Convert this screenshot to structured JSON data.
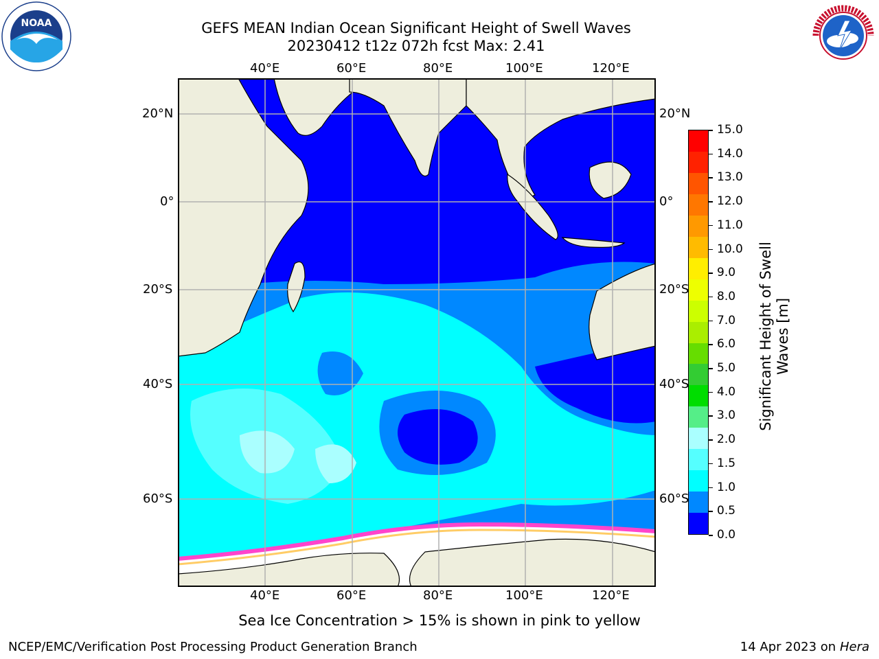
{
  "title_line1": "GEFS MEAN Indian Ocean Significant Height of Swell Waves",
  "title_line2": "20230412 t12z 072h fcst   Max: 2.41",
  "lon_labels": [
    "40°E",
    "60°E",
    "80°E",
    "100°E",
    "120°E"
  ],
  "lat_labels_left": [
    "20°N",
    "0°",
    "20°S",
    "40°S",
    "60°S"
  ],
  "lat_labels_right": [
    "20°N",
    "0°",
    "20°S",
    "40°S",
    "60°S"
  ],
  "colorbar": {
    "label_line1": "Significant Height of Swell",
    "label_line2": "Waves [m]",
    "ticks": [
      "15.0",
      "14.0",
      "13.0",
      "12.0",
      "11.0",
      "10.0",
      "9.0",
      "8.0",
      "7.0",
      "6.0",
      "5.0",
      "4.0",
      "3.0",
      "2.0",
      "1.5",
      "1.0",
      "0.5",
      "0.0"
    ],
    "colors_top_to_bottom": [
      "#ff0000",
      "#ff2200",
      "#ff5500",
      "#ff7700",
      "#ff9900",
      "#ffbb00",
      "#ffee00",
      "#eeff00",
      "#ccff00",
      "#aaee00",
      "#66dd00",
      "#33cc33",
      "#00dd00",
      "#55ee88",
      "#aaffff",
      "#55ffff",
      "#00ffff",
      "#0088ff",
      "#0000ff"
    ]
  },
  "ice_note": "Sea Ice Concentration > 15% is shown in pink to yellow",
  "footer_left": "NCEP/EMC/Verification Post Processing Product Generation Branch",
  "footer_date": "14 Apr 2023 on ",
  "footer_machine": "Hera",
  "logo_left_text": "NOAA",
  "logo_right_text": "NATIONAL WEATHER SERVICE"
}
